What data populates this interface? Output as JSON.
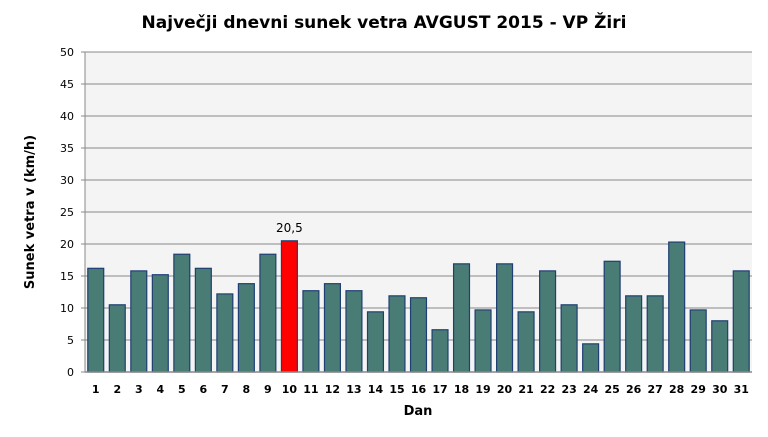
{
  "chart_data": {
    "type": "bar",
    "title": "Največji dnevni sunek vetra AVGUST 2015 - VP Žiri",
    "xlabel": "Dan",
    "ylabel": "Sunek vetra v (km/h)",
    "ylim": [
      0,
      50
    ],
    "yticks": [
      0,
      5,
      10,
      15,
      20,
      25,
      30,
      35,
      40,
      45,
      50
    ],
    "grid": true,
    "categories": [
      "1",
      "2",
      "3",
      "4",
      "5",
      "6",
      "7",
      "8",
      "9",
      "10",
      "11",
      "12",
      "13",
      "14",
      "15",
      "16",
      "17",
      "18",
      "19",
      "20",
      "21",
      "22",
      "23",
      "24",
      "25",
      "26",
      "27",
      "28",
      "29",
      "30",
      "31"
    ],
    "values": [
      16.2,
      10.5,
      15.8,
      15.2,
      18.4,
      16.2,
      12.2,
      13.8,
      18.4,
      20.5,
      12.7,
      13.8,
      12.7,
      9.4,
      11.9,
      11.6,
      6.6,
      16.9,
      9.7,
      16.9,
      9.4,
      15.8,
      10.5,
      4.4,
      17.3,
      11.9,
      11.9,
      20.3,
      9.7,
      8.0,
      15.8
    ],
    "highlight_index": 9,
    "highlight_label": "20,5",
    "colors": {
      "bar": "#4a7c76",
      "highlight": "#ff0000",
      "bar_border": "#1f3e73",
      "plot_bg": "#f4f4f4",
      "grid": "#888888"
    }
  }
}
